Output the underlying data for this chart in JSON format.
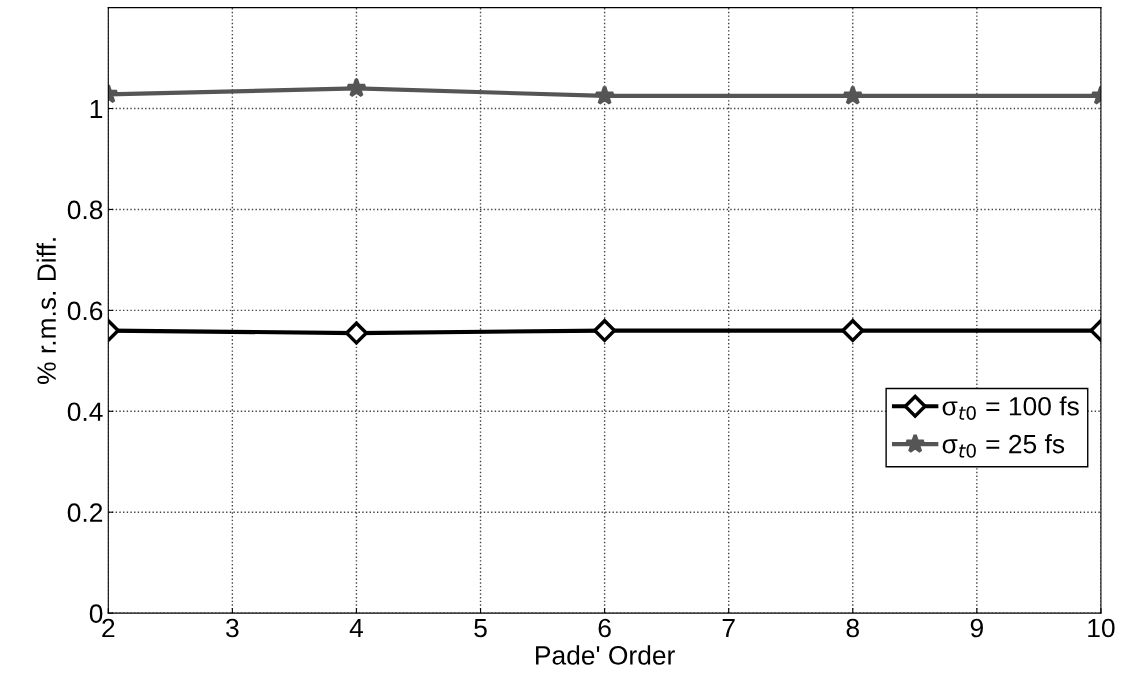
{
  "chart_data": {
    "type": "line",
    "xlabel": "Pade' Order",
    "ylabel": "% r.m.s. Diff.",
    "x": [
      2,
      4,
      6,
      8,
      10
    ],
    "series": [
      {
        "name": "σ$_{t0}$ = 100 fs",
        "color": "#000000",
        "marker": "diamond",
        "values": [
          0.56,
          0.555,
          0.56,
          0.56,
          0.56
        ]
      },
      {
        "name": "σ$_{t0}$ = 25 fs",
        "color": "#555555",
        "marker": "star",
        "values": [
          1.028,
          1.04,
          1.025,
          1.025,
          1.025
        ]
      }
    ],
    "xlim": [
      2,
      10
    ],
    "xticks": [
      2,
      3,
      4,
      5,
      6,
      7,
      8,
      9,
      10
    ],
    "ylim": [
      0,
      1.2
    ],
    "yticks": [
      0,
      0.2,
      0.4,
      0.6,
      0.8,
      1
    ],
    "grid": true,
    "legend": "lower right",
    "line_style": "solid"
  }
}
